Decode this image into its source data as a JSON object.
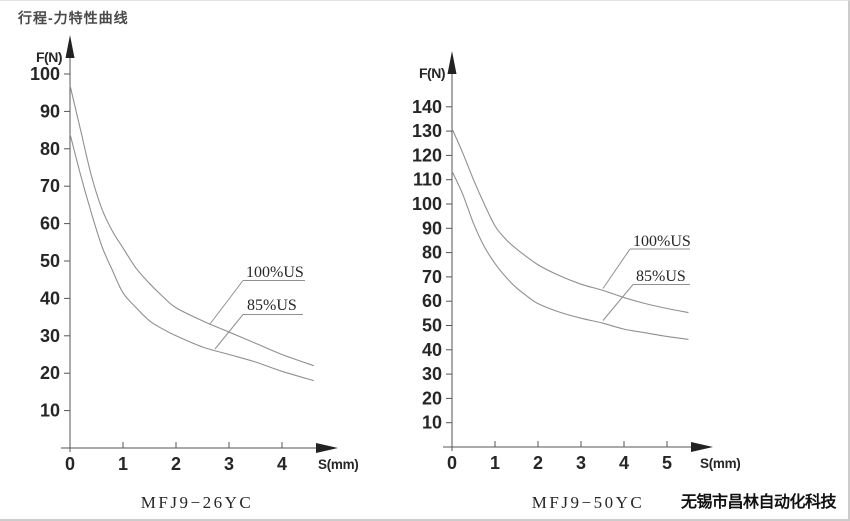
{
  "page": {
    "title": "行程-力特性曲线",
    "watermark": "无锡市昌林自动化科技",
    "background": "#ffffff",
    "border_color": "#cccccc",
    "curve_color": "#909090",
    "axis_color": "#555555",
    "arrow_color": "#222222",
    "text_color": "#262626"
  },
  "chart_data": [
    {
      "type": "line",
      "title": "MFJ9−26YC",
      "xlabel": "S(mm)",
      "ylabel": "F(N)",
      "xlim": [
        0,
        4.8
      ],
      "ylim": [
        0,
        105
      ],
      "xticks": [
        0,
        1,
        2,
        3,
        4
      ],
      "yticks": [
        10,
        20,
        30,
        40,
        50,
        60,
        70,
        80,
        90,
        100
      ],
      "legend_position": "inline-callouts",
      "grid": false,
      "series": [
        {
          "name": "100%US",
          "x": [
            0,
            0.2,
            0.4,
            0.6,
            0.8,
            1,
            1.25,
            1.5,
            1.75,
            2,
            2.5,
            3,
            3.5,
            4,
            4.6
          ],
          "y": [
            97,
            85,
            73,
            64,
            58,
            53.5,
            48,
            44,
            40.5,
            37.5,
            34,
            31,
            28,
            25,
            22
          ]
        },
        {
          "name": "85%US",
          "x": [
            0,
            0.2,
            0.4,
            0.6,
            0.8,
            1,
            1.25,
            1.5,
            1.75,
            2,
            2.5,
            3,
            3.5,
            4,
            4.6
          ],
          "y": [
            84,
            73,
            63,
            54,
            47.5,
            41.5,
            37.5,
            34,
            31.8,
            30,
            27,
            25,
            23,
            20.5,
            18
          ]
        }
      ]
    },
    {
      "type": "line",
      "title": "MFJ9−50YC",
      "xlabel": "S(mm)",
      "ylabel": "F(N)",
      "xlim": [
        0,
        5.7
      ],
      "ylim": [
        0,
        150
      ],
      "xticks": [
        0,
        1,
        2,
        3,
        4,
        5
      ],
      "yticks": [
        10,
        20,
        30,
        40,
        50,
        60,
        70,
        80,
        90,
        100,
        110,
        120,
        130,
        140
      ],
      "legend_position": "inline-callouts",
      "grid": false,
      "series": [
        {
          "name": "100%US",
          "x": [
            0,
            0.25,
            0.5,
            0.75,
            1,
            1.25,
            1.5,
            2,
            2.5,
            3,
            3.5,
            4,
            4.5,
            5,
            5.5
          ],
          "y": [
            131,
            121,
            110,
            100,
            91,
            85.5,
            81.5,
            75,
            70.5,
            67,
            64.5,
            61.5,
            59,
            57,
            55.3
          ]
        },
        {
          "name": "85%US",
          "x": [
            0,
            0.25,
            0.5,
            0.75,
            1,
            1.25,
            1.5,
            1.75,
            2,
            2.5,
            3,
            3.5,
            4,
            4.5,
            5,
            5.5
          ],
          "y": [
            113.5,
            104,
            92,
            82.5,
            75.5,
            70,
            65.5,
            62,
            59,
            55.5,
            53,
            51,
            48.5,
            47,
            45.5,
            44.3
          ]
        }
      ]
    }
  ]
}
